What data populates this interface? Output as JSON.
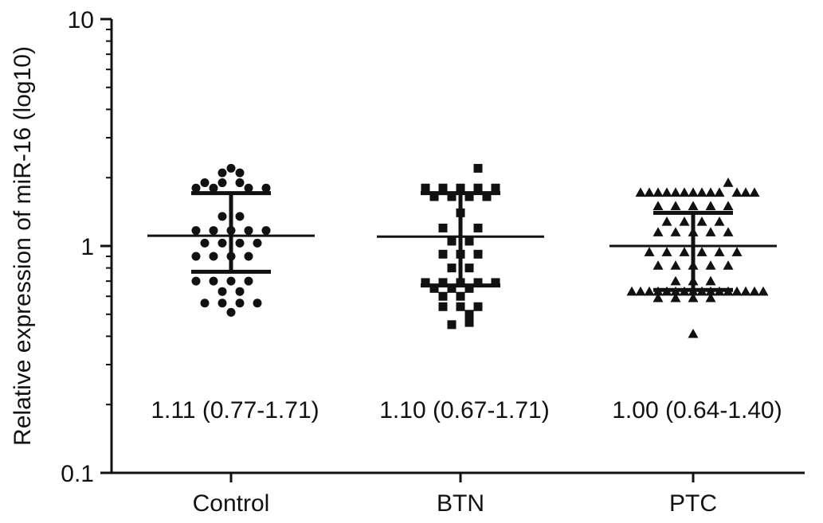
{
  "chart_data": {
    "type": "scatter",
    "ylabel": "Relative expression of miR-16 (log10)",
    "yscale": "log",
    "ylim": [
      0.1,
      10
    ],
    "yticks": [
      "0.1",
      "1",
      "10"
    ],
    "categories": [
      "Control",
      "BTN",
      "PTC"
    ],
    "grid": false,
    "groups": [
      {
        "name": "Control",
        "marker": "circle",
        "median": 1.11,
        "q1": 0.77,
        "q3": 1.71,
        "annotation": "1.11 (0.77-1.71)",
        "points": [
          {
            "dx": 0.0,
            "y": 2.2
          },
          {
            "dx": -0.11,
            "y": 2.1
          },
          {
            "dx": 0.11,
            "y": 2.1
          },
          {
            "dx": -0.33,
            "y": 1.9
          },
          {
            "dx": -0.11,
            "y": 1.9
          },
          {
            "dx": 0.11,
            "y": 1.9
          },
          {
            "dx": -0.44,
            "y": 1.8
          },
          {
            "dx": -0.22,
            "y": 1.8
          },
          {
            "dx": 0.22,
            "y": 1.8
          },
          {
            "dx": 0.44,
            "y": 1.8
          },
          {
            "dx": -0.11,
            "y": 1.35
          },
          {
            "dx": 0.11,
            "y": 1.35
          },
          {
            "dx": -0.44,
            "y": 1.17
          },
          {
            "dx": -0.22,
            "y": 1.17
          },
          {
            "dx": 0.0,
            "y": 1.17
          },
          {
            "dx": 0.22,
            "y": 1.17
          },
          {
            "dx": 0.44,
            "y": 1.17
          },
          {
            "dx": -0.33,
            "y": 1.03
          },
          {
            "dx": -0.11,
            "y": 1.03
          },
          {
            "dx": 0.11,
            "y": 1.03
          },
          {
            "dx": 0.33,
            "y": 1.03
          },
          {
            "dx": -0.44,
            "y": 0.9
          },
          {
            "dx": -0.22,
            "y": 0.9
          },
          {
            "dx": 0.0,
            "y": 0.9
          },
          {
            "dx": 0.22,
            "y": 0.9
          },
          {
            "dx": -0.44,
            "y": 0.7
          },
          {
            "dx": -0.22,
            "y": 0.7
          },
          {
            "dx": 0.0,
            "y": 0.7
          },
          {
            "dx": 0.22,
            "y": 0.7
          },
          {
            "dx": -0.11,
            "y": 0.63
          },
          {
            "dx": 0.11,
            "y": 0.63
          },
          {
            "dx": -0.33,
            "y": 0.56
          },
          {
            "dx": -0.11,
            "y": 0.56
          },
          {
            "dx": 0.11,
            "y": 0.56
          },
          {
            "dx": 0.33,
            "y": 0.56
          },
          {
            "dx": 0.0,
            "y": 0.51
          }
        ]
      },
      {
        "name": "BTN",
        "marker": "square",
        "median": 1.1,
        "q1": 0.67,
        "q3": 1.71,
        "annotation": "1.10 (0.67-1.71)",
        "points": [
          {
            "dx": 0.22,
            "y": 2.2
          },
          {
            "dx": -0.44,
            "y": 1.8
          },
          {
            "dx": -0.22,
            "y": 1.8
          },
          {
            "dx": 0.0,
            "y": 1.8
          },
          {
            "dx": 0.22,
            "y": 1.8
          },
          {
            "dx": 0.44,
            "y": 1.8
          },
          {
            "dx": -0.33,
            "y": 1.65
          },
          {
            "dx": -0.11,
            "y": 1.65
          },
          {
            "dx": 0.11,
            "y": 1.65
          },
          {
            "dx": 0.33,
            "y": 1.65
          },
          {
            "dx": 0.0,
            "y": 1.4
          },
          {
            "dx": -0.22,
            "y": 1.2
          },
          {
            "dx": 0.22,
            "y": 1.2
          },
          {
            "dx": -0.11,
            "y": 1.05
          },
          {
            "dx": 0.11,
            "y": 1.05
          },
          {
            "dx": -0.22,
            "y": 0.92
          },
          {
            "dx": 0.0,
            "y": 0.92
          },
          {
            "dx": 0.22,
            "y": 0.92
          },
          {
            "dx": -0.11,
            "y": 0.8
          },
          {
            "dx": 0.11,
            "y": 0.8
          },
          {
            "dx": -0.44,
            "y": 0.69
          },
          {
            "dx": -0.22,
            "y": 0.69
          },
          {
            "dx": 0.0,
            "y": 0.69
          },
          {
            "dx": 0.22,
            "y": 0.69
          },
          {
            "dx": 0.44,
            "y": 0.69
          },
          {
            "dx": -0.33,
            "y": 0.65
          },
          {
            "dx": -0.11,
            "y": 0.65
          },
          {
            "dx": 0.11,
            "y": 0.65
          },
          {
            "dx": -0.22,
            "y": 0.6
          },
          {
            "dx": 0.0,
            "y": 0.6
          },
          {
            "dx": -0.22,
            "y": 0.54
          },
          {
            "dx": 0.0,
            "y": 0.54
          },
          {
            "dx": 0.22,
            "y": 0.54
          },
          {
            "dx": 0.11,
            "y": 0.5
          },
          {
            "dx": -0.11,
            "y": 0.45
          },
          {
            "dx": 0.11,
            "y": 0.46
          }
        ]
      },
      {
        "name": "PTC",
        "marker": "triangle",
        "median": 1.0,
        "q1": 0.64,
        "q3": 1.4,
        "annotation": "1.00 (0.64-1.40)",
        "points": [
          {
            "dx": 0.44,
            "y": 1.9
          },
          {
            "dx": -0.66,
            "y": 1.72
          },
          {
            "dx": -0.55,
            "y": 1.72
          },
          {
            "dx": -0.44,
            "y": 1.72
          },
          {
            "dx": -0.33,
            "y": 1.72
          },
          {
            "dx": -0.22,
            "y": 1.72
          },
          {
            "dx": -0.11,
            "y": 1.72
          },
          {
            "dx": 0.0,
            "y": 1.72
          },
          {
            "dx": 0.11,
            "y": 1.72
          },
          {
            "dx": 0.22,
            "y": 1.72
          },
          {
            "dx": 0.33,
            "y": 1.72
          },
          {
            "dx": 0.55,
            "y": 1.72
          },
          {
            "dx": 0.66,
            "y": 1.72
          },
          {
            "dx": 0.77,
            "y": 1.72
          },
          {
            "dx": -0.44,
            "y": 1.5
          },
          {
            "dx": -0.22,
            "y": 1.5
          },
          {
            "dx": 0.0,
            "y": 1.5
          },
          {
            "dx": 0.22,
            "y": 1.5
          },
          {
            "dx": 0.44,
            "y": 1.5
          },
          {
            "dx": -0.33,
            "y": 1.28
          },
          {
            "dx": -0.11,
            "y": 1.28
          },
          {
            "dx": 0.11,
            "y": 1.28
          },
          {
            "dx": 0.33,
            "y": 1.28
          },
          {
            "dx": -0.44,
            "y": 1.15
          },
          {
            "dx": -0.22,
            "y": 1.15
          },
          {
            "dx": 0.0,
            "y": 1.15
          },
          {
            "dx": 0.22,
            "y": 1.15
          },
          {
            "dx": 0.44,
            "y": 1.15
          },
          {
            "dx": -0.55,
            "y": 0.94
          },
          {
            "dx": -0.33,
            "y": 0.94
          },
          {
            "dx": -0.11,
            "y": 0.94
          },
          {
            "dx": 0.11,
            "y": 0.94
          },
          {
            "dx": 0.33,
            "y": 0.94
          },
          {
            "dx": 0.55,
            "y": 0.94
          },
          {
            "dx": -0.44,
            "y": 0.82
          },
          {
            "dx": -0.22,
            "y": 0.82
          },
          {
            "dx": 0.0,
            "y": 0.82
          },
          {
            "dx": 0.22,
            "y": 0.82
          },
          {
            "dx": 0.44,
            "y": 0.82
          },
          {
            "dx": -0.22,
            "y": 0.7
          },
          {
            "dx": 0.0,
            "y": 0.7
          },
          {
            "dx": 0.22,
            "y": 0.7
          },
          {
            "dx": -0.77,
            "y": 0.63
          },
          {
            "dx": -0.66,
            "y": 0.63
          },
          {
            "dx": -0.55,
            "y": 0.63
          },
          {
            "dx": -0.44,
            "y": 0.63
          },
          {
            "dx": -0.33,
            "y": 0.63
          },
          {
            "dx": -0.22,
            "y": 0.63
          },
          {
            "dx": -0.11,
            "y": 0.63
          },
          {
            "dx": 0.0,
            "y": 0.63
          },
          {
            "dx": 0.11,
            "y": 0.63
          },
          {
            "dx": 0.22,
            "y": 0.63
          },
          {
            "dx": 0.33,
            "y": 0.63
          },
          {
            "dx": 0.44,
            "y": 0.63
          },
          {
            "dx": 0.55,
            "y": 0.63
          },
          {
            "dx": 0.66,
            "y": 0.63
          },
          {
            "dx": 0.77,
            "y": 0.63
          },
          {
            "dx": 0.88,
            "y": 0.63
          },
          {
            "dx": -0.44,
            "y": 0.59
          },
          {
            "dx": -0.22,
            "y": 0.59
          },
          {
            "dx": 0.0,
            "y": 0.59
          },
          {
            "dx": 0.22,
            "y": 0.59
          },
          {
            "dx": 0.0,
            "y": 0.41
          }
        ]
      }
    ]
  },
  "colors": {
    "ink": "#111111",
    "background": "#ffffff"
  }
}
